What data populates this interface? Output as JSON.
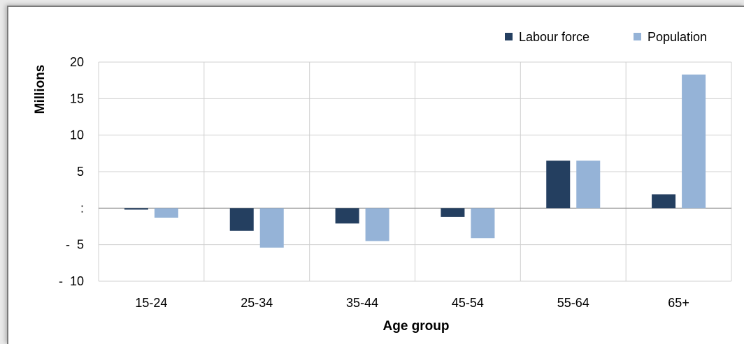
{
  "chart_data": {
    "type": "bar",
    "title": "",
    "xlabel": "Age group",
    "ylabel": "Millions",
    "categories": [
      "15-24",
      "25-34",
      "35-44",
      "45-54",
      "55-64",
      "65+"
    ],
    "series": [
      {
        "name": "Labour force",
        "values": [
          -0.2,
          -3.1,
          -2.1,
          -1.2,
          6.5,
          1.9
        ]
      },
      {
        "name": "Population",
        "values": [
          -1.3,
          -5.4,
          -4.5,
          -4.1,
          6.5,
          18.3
        ]
      }
    ],
    "yticks": [
      20,
      15,
      10,
      5,
      0,
      -5,
      -10
    ],
    "ytick_labels": [
      "20",
      "15",
      "10",
      "5",
      ":",
      "-  5",
      "-  10"
    ],
    "ylim": [
      -10,
      20
    ],
    "grid": true,
    "legend_position": "top-right",
    "colors": {
      "Labour force": "#243f60",
      "Population": "#95b3d7"
    }
  }
}
